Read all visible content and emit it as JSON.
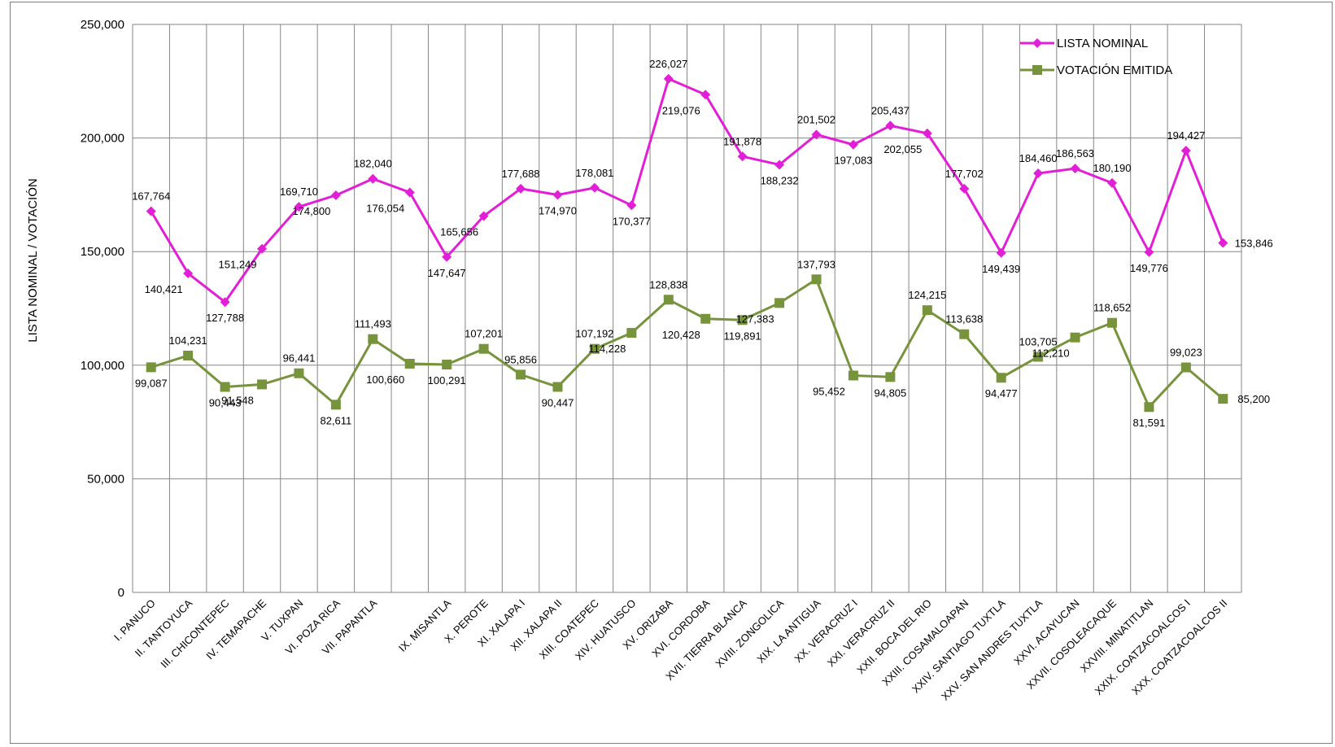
{
  "chart_data": {
    "type": "line",
    "title": "",
    "xlabel": "",
    "ylabel": "LISTA NOMINAL / VOTACIÓN",
    "ylim": [
      0,
      250000
    ],
    "y_ticks": [
      "0",
      "50,000",
      "100,000",
      "150,000",
      "200,000",
      "250,000"
    ],
    "y_tick_values": [
      0,
      50000,
      100000,
      150000,
      200000,
      250000
    ],
    "grid": true,
    "legend_position": "top-right",
    "categories": [
      "I. PANUCO",
      "II. TANTOYUCA",
      "III. CHICONTEPEC",
      "IV. TEMAPACHE",
      "V. TUXPAN",
      "VI. POZA RICA",
      "VII. PAPANTLA",
      "",
      "IX. MISANTLA",
      "X. PEROTE",
      "XI. XALAPA I",
      "XII. XALAPA II",
      "XIII. COATEPEC",
      "XIV. HUATUSCO",
      "XV. ORIZABA",
      "XVI. CORDOBA",
      "XVII. TIERRA BLANCA",
      "XVIII. ZONGOLICA",
      "XIX. LA ANTIGUA",
      "XX. VERACRUZ I",
      "XXI. VERACRUZ II",
      "XXII. BOCA DEL RIO",
      "XXIII. COSAMALOAPAN",
      "XXIV. SANTIAGO TUXTLA",
      "XXV. SAN ANDRES TUXTLA",
      "XXVI. ACAYUCAN",
      "XXVII. COSOLEACAQUE",
      "XXVIII. MINATITLAN",
      "XXIX. COATZACOALCOS I",
      "XXX. COATZACOALCOS II"
    ],
    "series": [
      {
        "name": "LISTA NOMINAL",
        "color": "#e21fd6",
        "marker": "diamond",
        "values": [
          167764,
          140421,
          127788,
          151249,
          169710,
          174800,
          182040,
          176054,
          147647,
          165656,
          177688,
          174970,
          178081,
          170377,
          226027,
          219076,
          191878,
          188232,
          201502,
          197083,
          205437,
          202055,
          177702,
          149439,
          184460,
          186563,
          180190,
          149776,
          194427,
          153846
        ],
        "labels": [
          "167,764",
          "140,421",
          "127,788",
          "151,249",
          "169,710",
          "174,800",
          "182,040",
          "176,054",
          "147,647",
          "165,656",
          "177,688",
          "174,970",
          "178,081",
          "170,377",
          "226,027",
          "219,076",
          "191,878",
          "188,232",
          "201,502",
          "197,083",
          "205,437",
          "202,055",
          "177,702",
          "149,439",
          "184,460",
          "186,563",
          "180,190",
          "149,776",
          "194,427",
          "153,846"
        ]
      },
      {
        "name": "VOTACIÓN EMITIDA",
        "color": "#77933c",
        "marker": "square",
        "values": [
          99087,
          104231,
          90443,
          91548,
          96441,
          82611,
          111493,
          100660,
          100291,
          107201,
          95856,
          90447,
          107192,
          114228,
          128838,
          120428,
          119891,
          127383,
          137793,
          95452,
          94805,
          124215,
          113638,
          94477,
          103705,
          112210,
          118652,
          81591,
          99023,
          85200
        ],
        "labels": [
          "99,087",
          "104,231",
          "90,443",
          "91,548",
          "96,441",
          "82,611",
          "111,493",
          "100,660",
          "100,291",
          "107,201",
          "95,856",
          "90,447",
          "107,192",
          "114,228",
          "128,838",
          "120,428",
          "119,891",
          "127,383",
          "137,793",
          "95,452",
          "94,805",
          "124,215",
          "113,638",
          "94,477",
          "103,705",
          "112,210",
          "118,652",
          "81,591",
          "99,023",
          "85,200"
        ]
      }
    ]
  }
}
